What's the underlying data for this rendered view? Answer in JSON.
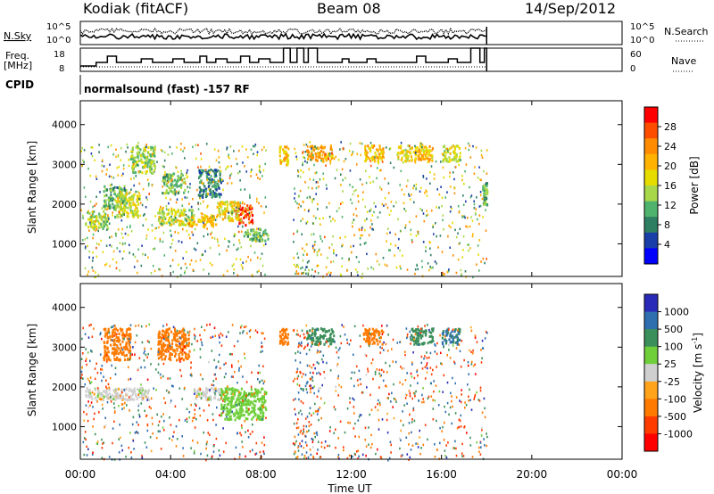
{
  "header": {
    "title": "Kodiak (fitACF)",
    "beam": "Beam 08",
    "date": "14/Sep/2012"
  },
  "control_panels": {
    "nsky_label": "N.Sky",
    "nsearch_label": "N.Search",
    "freq_label_1": "Freq.",
    "freq_label_2": "[MHz]",
    "nave_label": "Nave",
    "cpid_label": "CPID",
    "noise_left_ticks": [
      "10^5",
      "10^0"
    ],
    "noise_right_ticks": [
      "10^5",
      "10^0"
    ],
    "freq_ticks": [
      "18",
      "8"
    ],
    "nave_ticks": [
      "60",
      "0"
    ],
    "cpid_text": "normalsound (fast) -157 RF"
  },
  "axes": {
    "slant_ylabel": "Slant Range [km]",
    "yticks": [
      "4000",
      "3000",
      "2000",
      "1000"
    ],
    "xticks": [
      "00:00",
      "04:00",
      "08:00",
      "12:00",
      "16:00",
      "20:00",
      "00:00"
    ],
    "xlabel": "Time UT"
  },
  "colorbars": {
    "power": {
      "label": "Power [dB]",
      "ticks": [
        "28",
        "24",
        "20",
        "16",
        "12",
        "8",
        "4"
      ],
      "colors": [
        "#ff0000",
        "#ff4d00",
        "#ff8c00",
        "#ffb300",
        "#e6dc00",
        "#a8d84a",
        "#4fb36e",
        "#2e7f62",
        "#1a3ea8",
        "#0000ff"
      ]
    },
    "velocity": {
      "label_main": "Velocity [m s",
      "label_exp": "-1",
      "label_end": "]",
      "ticks": [
        "1000",
        "500",
        "100",
        "25",
        "-25",
        "-100",
        "-500",
        "-1000"
      ],
      "colors": [
        "#2a2ab8",
        "#2f6fb0",
        "#3b8f5a",
        "#6fcf3a",
        "#cfcfcf",
        "#ffa31a",
        "#ff7a00",
        "#ff3b00",
        "#ff0000"
      ]
    }
  },
  "chart_data": {
    "type": "heatmap",
    "x_unit": "hours UT",
    "xlim": [
      0,
      24
    ],
    "ylim": [
      180,
      4600
    ],
    "data_end_hour": 18.0,
    "power_regions": [
      {
        "x": [
          0.2,
          1.2
        ],
        "y": [
          1400,
          1850
        ],
        "value": 14
      },
      {
        "x": [
          1.0,
          2.0
        ],
        "y": [
          1900,
          2500
        ],
        "value": 12
      },
      {
        "x": [
          1.5,
          2.6
        ],
        "y": [
          1700,
          2300
        ],
        "value": 16
      },
      {
        "x": [
          2.2,
          3.3
        ],
        "y": [
          2800,
          3500
        ],
        "value": 14
      },
      {
        "x": [
          3.6,
          4.6
        ],
        "y": [
          2300,
          2800
        ],
        "value": 12
      },
      {
        "x": [
          3.4,
          5.0
        ],
        "y": [
          1500,
          1900
        ],
        "value": 16
      },
      {
        "x": [
          4.8,
          6.0
        ],
        "y": [
          1450,
          1750
        ],
        "value": 20
      },
      {
        "x": [
          5.2,
          6.2
        ],
        "y": [
          2200,
          2900
        ],
        "value": 8
      },
      {
        "x": [
          6.8,
          7.6
        ],
        "y": [
          1500,
          2000
        ],
        "value": 28
      },
      {
        "x": [
          6.0,
          7.0
        ],
        "y": [
          1600,
          2100
        ],
        "value": 18
      },
      {
        "x": [
          7.2,
          8.3
        ],
        "y": [
          1100,
          1400
        ],
        "value": 12
      },
      {
        "x": [
          8.8,
          9.2
        ],
        "y": [
          3000,
          3500
        ],
        "value": 20
      },
      {
        "x": [
          10.0,
          11.2
        ],
        "y": [
          3100,
          3500
        ],
        "value": 22
      },
      {
        "x": [
          12.5,
          13.4
        ],
        "y": [
          3100,
          3500
        ],
        "value": 20
      },
      {
        "x": [
          14.0,
          14.6
        ],
        "y": [
          3100,
          3500
        ],
        "value": 18
      },
      {
        "x": [
          14.6,
          15.6
        ],
        "y": [
          3100,
          3500
        ],
        "value": 20
      },
      {
        "x": [
          16.0,
          16.8
        ],
        "y": [
          3100,
          3500
        ],
        "value": 16
      },
      {
        "x": [
          17.8,
          18.0
        ],
        "y": [
          2000,
          2600
        ],
        "value": 12
      }
    ],
    "velocity_regions": [
      {
        "x": [
          0.2,
          3.0
        ],
        "y": [
          1700,
          2000
        ],
        "value": 0
      },
      {
        "x": [
          1.0,
          2.2
        ],
        "y": [
          2700,
          3500
        ],
        "value": -300
      },
      {
        "x": [
          3.4,
          4.8
        ],
        "y": [
          2700,
          3500
        ],
        "value": -300
      },
      {
        "x": [
          5.0,
          6.2
        ],
        "y": [
          1700,
          2000
        ],
        "value": 0
      },
      {
        "x": [
          6.2,
          8.2
        ],
        "y": [
          1200,
          2000
        ],
        "value": 60
      },
      {
        "x": [
          8.8,
          9.2
        ],
        "y": [
          3100,
          3500
        ],
        "value": -200
      },
      {
        "x": [
          10.0,
          11.2
        ],
        "y": [
          3100,
          3500
        ],
        "value": 300
      },
      {
        "x": [
          12.5,
          13.4
        ],
        "y": [
          3100,
          3500
        ],
        "value": -200
      },
      {
        "x": [
          14.6,
          15.6
        ],
        "y": [
          3100,
          3500
        ],
        "value": 300
      },
      {
        "x": [
          16.0,
          16.8
        ],
        "y": [
          3100,
          3500
        ],
        "value": 500
      }
    ]
  }
}
